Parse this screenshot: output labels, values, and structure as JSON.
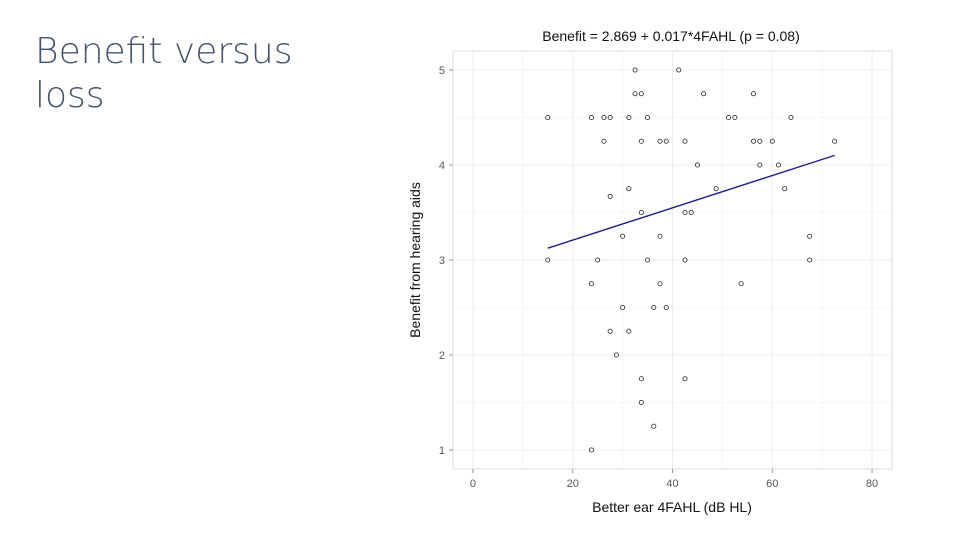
{
  "slide": {
    "title": "Benefit versus loss"
  },
  "chart_data": {
    "type": "scatter",
    "title": "Benefit = 2.869 + 0.017*4FAHL  (p = 0.08)",
    "xlabel": "Better ear 4FAHL (dB HL)",
    "ylabel": "Benefit from hearing aids",
    "xlim": [
      -4,
      84
    ],
    "ylim": [
      0.8,
      5.2
    ],
    "xticks": [
      0,
      20,
      40,
      60,
      80
    ],
    "yticks": [
      1,
      2,
      3,
      4,
      5
    ],
    "grid": true,
    "points": [
      {
        "x": 32.5,
        "y": 5.0
      },
      {
        "x": 41.25,
        "y": 5.0
      },
      {
        "x": 32.5,
        "y": 4.75
      },
      {
        "x": 33.75,
        "y": 4.75
      },
      {
        "x": 46.25,
        "y": 4.75
      },
      {
        "x": 56.25,
        "y": 4.75
      },
      {
        "x": 15,
        "y": 4.5
      },
      {
        "x": 23.75,
        "y": 4.5
      },
      {
        "x": 26.25,
        "y": 4.5
      },
      {
        "x": 27.5,
        "y": 4.5
      },
      {
        "x": 31.25,
        "y": 4.5
      },
      {
        "x": 35,
        "y": 4.5
      },
      {
        "x": 51.25,
        "y": 4.5
      },
      {
        "x": 52.5,
        "y": 4.5
      },
      {
        "x": 63.75,
        "y": 4.5
      },
      {
        "x": 26.25,
        "y": 4.25
      },
      {
        "x": 33.75,
        "y": 4.25
      },
      {
        "x": 37.5,
        "y": 4.25
      },
      {
        "x": 38.75,
        "y": 4.25
      },
      {
        "x": 42.5,
        "y": 4.25
      },
      {
        "x": 56.25,
        "y": 4.25
      },
      {
        "x": 57.5,
        "y": 4.25
      },
      {
        "x": 60,
        "y": 4.25
      },
      {
        "x": 72.5,
        "y": 4.25
      },
      {
        "x": 45,
        "y": 4.0
      },
      {
        "x": 57.5,
        "y": 4.0
      },
      {
        "x": 61.25,
        "y": 4.0
      },
      {
        "x": 31.25,
        "y": 3.75
      },
      {
        "x": 48.75,
        "y": 3.75
      },
      {
        "x": 62.5,
        "y": 3.75
      },
      {
        "x": 27.5,
        "y": 3.67
      },
      {
        "x": 33.75,
        "y": 3.5
      },
      {
        "x": 42.5,
        "y": 3.5
      },
      {
        "x": 43.75,
        "y": 3.5
      },
      {
        "x": 30,
        "y": 3.25
      },
      {
        "x": 37.5,
        "y": 3.25
      },
      {
        "x": 67.5,
        "y": 3.25
      },
      {
        "x": 15,
        "y": 3.0
      },
      {
        "x": 25,
        "y": 3.0
      },
      {
        "x": 35,
        "y": 3.0
      },
      {
        "x": 42.5,
        "y": 3.0
      },
      {
        "x": 67.5,
        "y": 3.0
      },
      {
        "x": 23.75,
        "y": 2.75
      },
      {
        "x": 37.5,
        "y": 2.75
      },
      {
        "x": 53.75,
        "y": 2.75
      },
      {
        "x": 30,
        "y": 2.5
      },
      {
        "x": 36.25,
        "y": 2.5
      },
      {
        "x": 38.75,
        "y": 2.5
      },
      {
        "x": 27.5,
        "y": 2.25
      },
      {
        "x": 31.25,
        "y": 2.25
      },
      {
        "x": 28.75,
        "y": 2.0
      },
      {
        "x": 33.75,
        "y": 1.75
      },
      {
        "x": 42.5,
        "y": 1.75
      },
      {
        "x": 33.75,
        "y": 1.5
      },
      {
        "x": 36.25,
        "y": 1.25
      },
      {
        "x": 23.75,
        "y": 1.0
      }
    ],
    "fit_line": {
      "intercept": 2.869,
      "slope": 0.017,
      "x": [
        15,
        72.5
      ]
    },
    "colors": {
      "points": "#222222",
      "fit_line": "#1f1f8f",
      "grid": "#ececec",
      "tick_label": "#555555",
      "frame": "#d9d9d9"
    }
  }
}
